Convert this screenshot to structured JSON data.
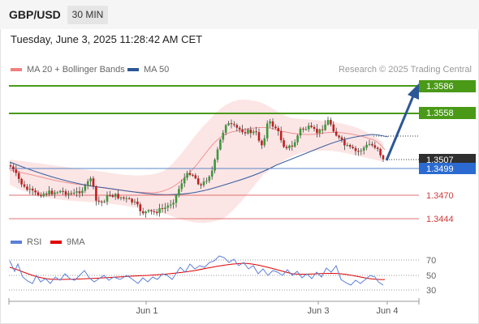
{
  "header": {
    "pair": "GBP/USD",
    "timeframe": "30 MIN"
  },
  "timestamp": "Tuesday, June 3, 2025 11:28:42 AM CET",
  "legend": {
    "ma20": {
      "label": "MA 20 + Bollinger Bands",
      "color": "#f08080"
    },
    "ma50": {
      "label": "MA 50",
      "color": "#2b5797"
    }
  },
  "credit": "Research © 2025 Trading Central",
  "levels": {
    "r2": {
      "label": "1.3586",
      "color": "#4a9a18"
    },
    "r1": {
      "label": "1.3558",
      "color": "#4a9a18"
    },
    "last": {
      "label": "1.3507",
      "color": "#333333"
    },
    "pivot": {
      "label": "1.3499",
      "color": "#2b6bd1"
    },
    "s1": {
      "label": "1.3470",
      "color": "#d23a3a"
    },
    "s2": {
      "label": "1.3444",
      "color": "#d23a3a"
    }
  },
  "rsi": {
    "legend": {
      "rsi": "RSI",
      "ma": "9MA"
    },
    "levels": [
      "70",
      "50",
      "30"
    ]
  },
  "xaxis": {
    "labels": [
      "Jun 1",
      "Jun 3",
      "Jun 4"
    ]
  }
}
